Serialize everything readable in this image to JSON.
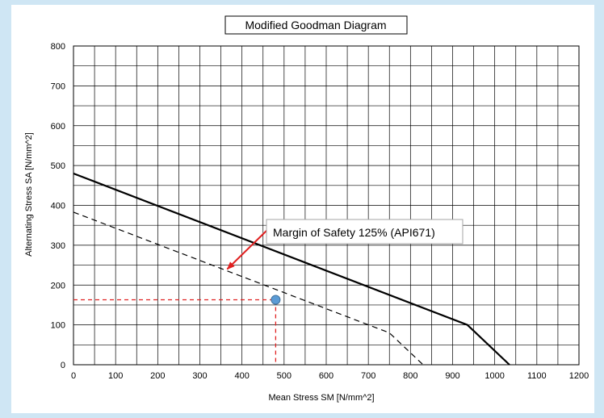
{
  "chart_data": {
    "type": "line",
    "title": "Modified Goodman Diagram",
    "xlabel": "Mean Stress SM [N/mm^2]",
    "ylabel": "Alternating Stress SA [N/mm^2]",
    "xlim": [
      0,
      1200
    ],
    "ylim": [
      0,
      800
    ],
    "x_ticks": [
      0,
      100,
      200,
      300,
      400,
      500,
      600,
      700,
      800,
      900,
      1000,
      1100,
      1200
    ],
    "y_ticks": [
      0,
      100,
      200,
      300,
      400,
      500,
      600,
      700,
      800
    ],
    "grid": true,
    "grid_step_x": 50,
    "grid_step_y": 50,
    "series": [
      {
        "style": "solid",
        "color": "#000000",
        "points": [
          [
            0,
            480
          ],
          [
            935,
            100
          ],
          [
            1035,
            0
          ]
        ]
      },
      {
        "style": "dashed",
        "color": "#000000",
        "points": [
          [
            0,
            383
          ],
          [
            750,
            80
          ],
          [
            830,
            0
          ]
        ]
      }
    ],
    "operating_point": {
      "x": 480,
      "y": 163,
      "color": "#5b9bd5"
    },
    "guide_lines": {
      "color": "#e02020",
      "style": "dashed"
    },
    "annotation": {
      "text": "Margin of Safety 125% (API671)",
      "arrow_color": "#e02020",
      "arrow_target": [
        365,
        240
      ]
    }
  }
}
